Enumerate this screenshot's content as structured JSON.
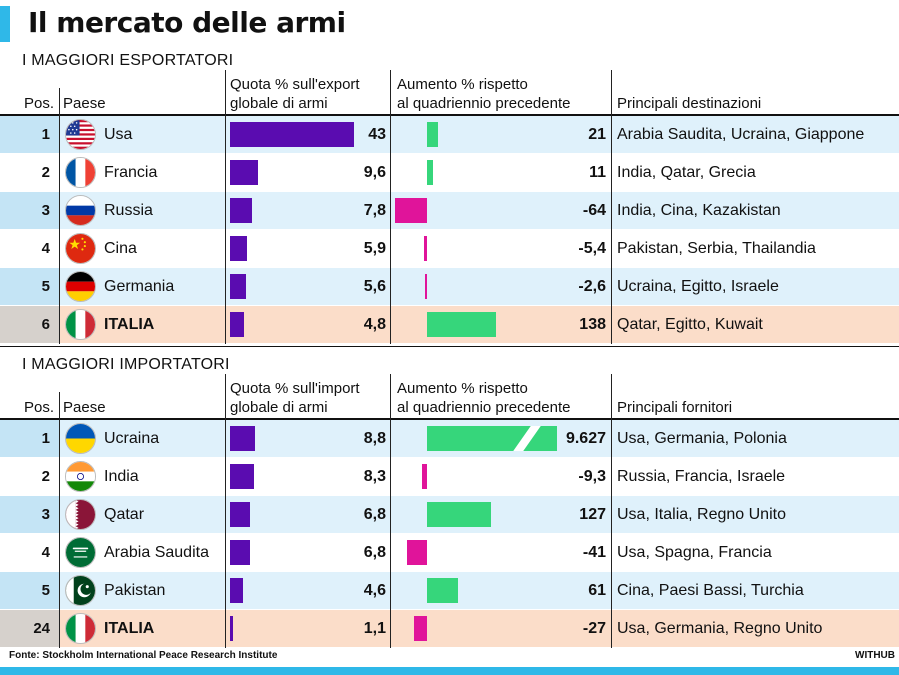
{
  "title": "Il mercato delle armi",
  "source": "Fonte: Stockholm International Peace Research Institute",
  "brand": "WITHUB",
  "colors": {
    "accent": "#2fb8e8",
    "share_bar": "#5a0cb0",
    "increase_positive": "#36d67b",
    "increase_negative": "#e0149a",
    "row_tint": "#dff1fb",
    "italia_row": "#fbddc9"
  },
  "chart_data": [
    {
      "type": "table",
      "title": "I MAGGIORI ESPORTATORI",
      "columns": [
        "Pos.",
        "Paese",
        "Quota % sull'export globale di armi",
        "Aumento % rispetto al quadriennio precedente",
        "Principali destinazioni"
      ],
      "col_pos": "Pos.",
      "col_country": "Paese",
      "col_share_1": "Quota % sull'export",
      "col_share_2": "globale di armi",
      "col_inc_1": "Aumento % rispetto",
      "col_inc_2": "al quadriennio precedente",
      "col_partners": "Principali destinazioni",
      "rows": [
        {
          "pos": "1",
          "country": "Usa",
          "flag": "flag-usa",
          "share": 43,
          "share_label": "43",
          "increase": 21,
          "increase_label": "21",
          "partners": "Arabia Saudita, Ucraina, Giappone"
        },
        {
          "pos": "2",
          "country": "Francia",
          "flag": "flag-france",
          "share": 9.6,
          "share_label": "9,6",
          "increase": 11,
          "increase_label": "11",
          "partners": "India, Qatar, Grecia"
        },
        {
          "pos": "3",
          "country": "Russia",
          "flag": "flag-russia",
          "share": 7.8,
          "share_label": "7,8",
          "increase": -64,
          "increase_label": "-64",
          "partners": "India, Cina, Kazakistan"
        },
        {
          "pos": "4",
          "country": "Cina",
          "flag": "flag-china",
          "share": 5.9,
          "share_label": "5,9",
          "increase": -5.4,
          "increase_label": "-5,4",
          "partners": "Pakistan, Serbia, Thailandia"
        },
        {
          "pos": "5",
          "country": "Germania",
          "flag": "flag-germany",
          "share": 5.6,
          "share_label": "5,6",
          "increase": -2.6,
          "increase_label": "-2,6",
          "partners": "Ucraina, Egitto, Israele"
        },
        {
          "pos": "6",
          "country": "ITALIA",
          "flag": "flag-italy",
          "share": 4.8,
          "share_label": "4,8",
          "increase": 138,
          "increase_label": "138",
          "partners": "Qatar, Egitto, Kuwait",
          "highlight": true
        }
      ]
    },
    {
      "type": "table",
      "title": "I MAGGIORI IMPORTATORI",
      "columns": [
        "Pos.",
        "Paese",
        "Quota % sull'import globale di armi",
        "Aumento % rispetto al quadriennio precedente",
        "Principali fornitori"
      ],
      "col_pos": "Pos.",
      "col_country": "Paese",
      "col_share_1": "Quota % sull'import",
      "col_share_2": "globale di armi",
      "col_inc_1": "Aumento % rispetto",
      "col_inc_2": "al quadriennio precedente",
      "col_partners": "Principali fornitori",
      "rows": [
        {
          "pos": "1",
          "country": "Ucraina",
          "flag": "flag-ukraine",
          "share": 8.8,
          "share_label": "8,8",
          "increase": 9627,
          "increase_label": "9.627",
          "partners": "Usa, Germania, Polonia",
          "broken_bar": true
        },
        {
          "pos": "2",
          "country": "India",
          "flag": "flag-india",
          "share": 8.3,
          "share_label": "8,3",
          "increase": -9.3,
          "increase_label": "-9,3",
          "partners": "Russia, Francia, Israele"
        },
        {
          "pos": "3",
          "country": "Qatar",
          "flag": "flag-qatar",
          "share": 6.8,
          "share_label": "6,8",
          "increase": 127,
          "increase_label": "127",
          "partners": "Usa, Italia, Regno Unito"
        },
        {
          "pos": "4",
          "country": "Arabia Saudita",
          "flag": "flag-saudi-arabia",
          "share": 6.8,
          "share_label": "6,8",
          "increase": -41,
          "increase_label": "-41",
          "partners": "Usa, Spagna, Francia"
        },
        {
          "pos": "5",
          "country": "Pakistan",
          "flag": "flag-pakistan",
          "share": 4.6,
          "share_label": "4,6",
          "increase": 61,
          "increase_label": "61",
          "partners": "Cina, Paesi Bassi, Turchia"
        },
        {
          "pos": "24",
          "country": "ITALIA",
          "flag": "flag-italy",
          "share": 1.1,
          "share_label": "1,1",
          "increase": -27,
          "increase_label": "-27",
          "partners": "Usa, Germania, Regno Unito",
          "highlight": true
        }
      ]
    }
  ]
}
